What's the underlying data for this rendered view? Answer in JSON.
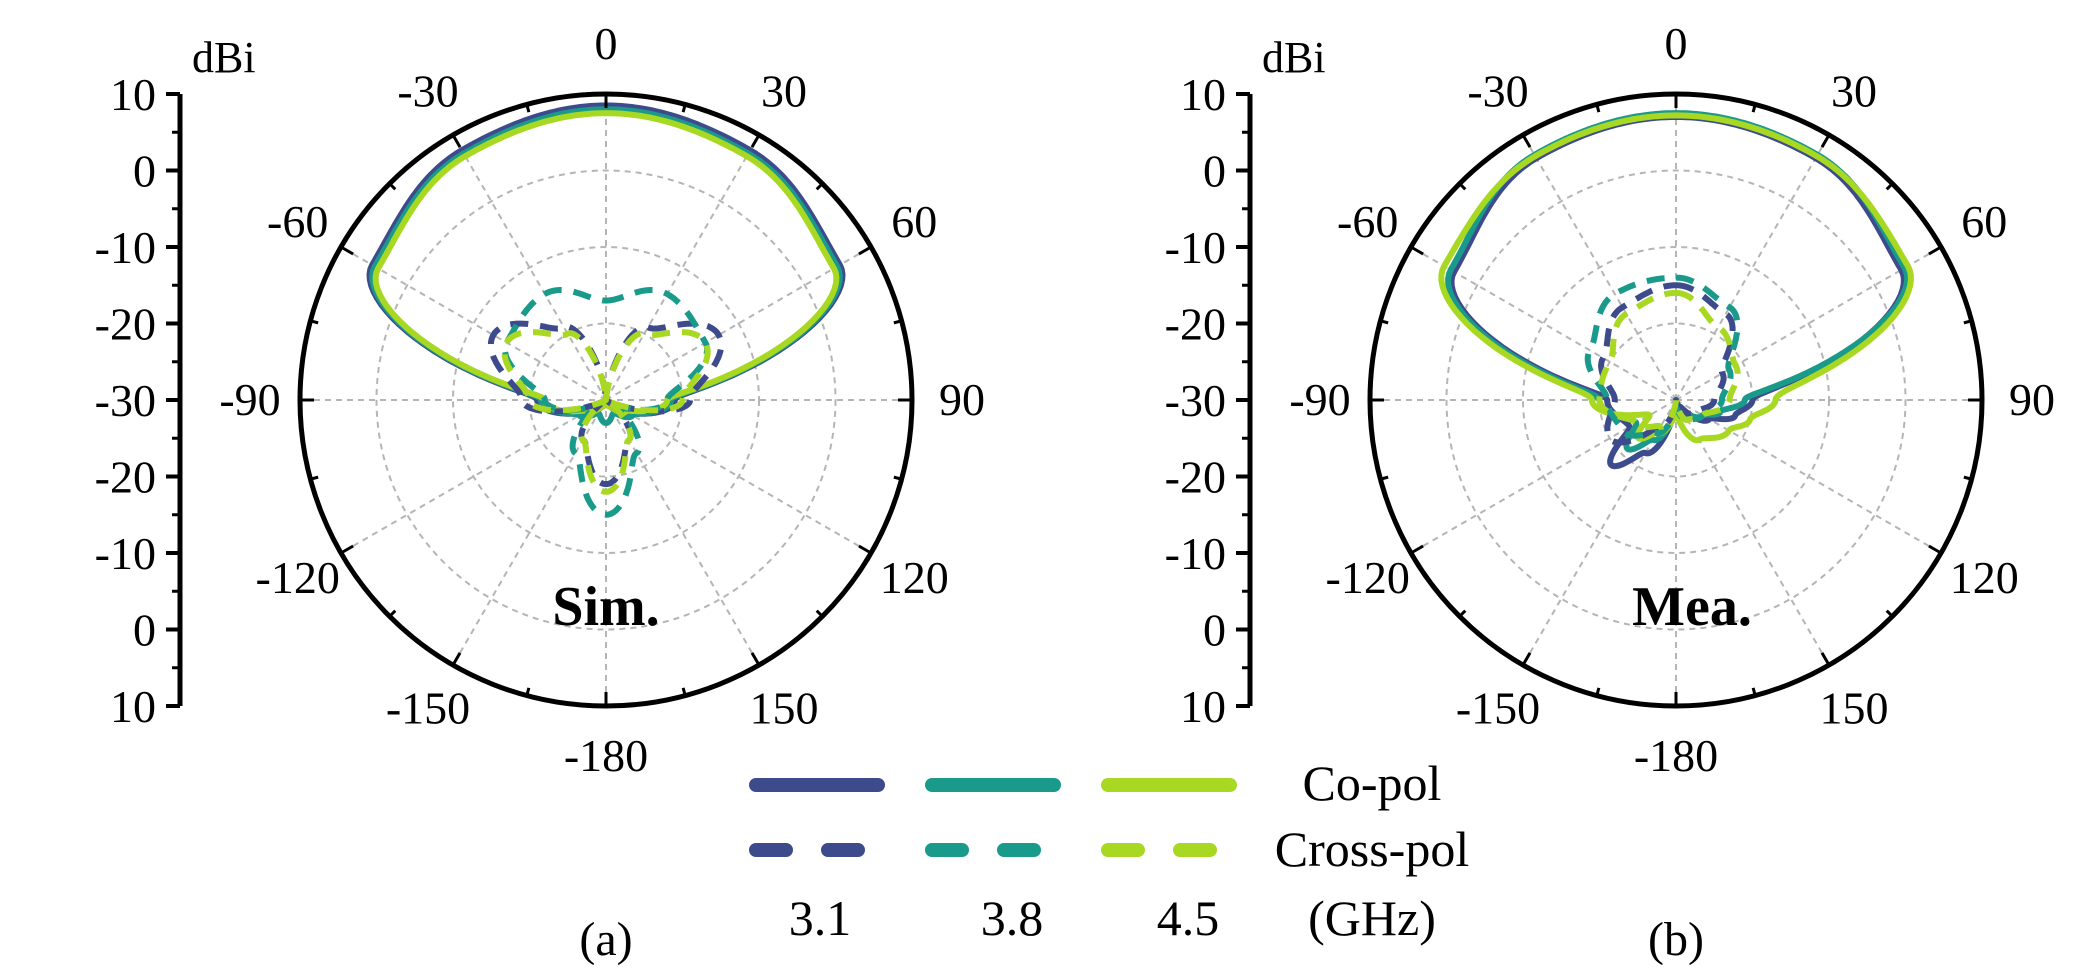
{
  "chart_data": [
    {
      "type": "polar",
      "panel_label": "(a)",
      "annotation": "Sim.",
      "radial_unit": "dBi",
      "radial_ticks": [
        "10",
        "0",
        "-10",
        "-20",
        "-30",
        "-20",
        "-10",
        "0",
        "10"
      ],
      "r_range": [
        -30,
        10
      ],
      "angle_labels": [
        "0",
        "30",
        "60",
        "90",
        "120",
        "150",
        "-180",
        "-150",
        "-120",
        "-90",
        "-60",
        "-30"
      ],
      "grid": true,
      "series": [
        {
          "name": "3.1",
          "pol": "co",
          "color": "#3d4a8c",
          "angles": [
            0,
            30,
            60,
            90,
            120,
            150,
            180,
            -150,
            -120,
            -90,
            -60,
            -30
          ],
          "values": [
            8.5,
            7.7,
            5.3,
            -21,
            -26,
            -29,
            -30,
            -29,
            -26,
            -21,
            5.3,
            7.7
          ]
        },
        {
          "name": "3.8",
          "pol": "co",
          "color": "#1a9a8a",
          "angles": [
            0,
            30,
            60,
            90,
            120,
            150,
            180,
            -150,
            -120,
            -90,
            -60,
            -30
          ],
          "values": [
            8.0,
            7.2,
            4.9,
            -21.5,
            -26,
            -28,
            -27,
            -28,
            -26,
            -21.5,
            4.9,
            7.2
          ]
        },
        {
          "name": "4.5",
          "pol": "co",
          "color": "#a8d822",
          "angles": [
            0,
            30,
            60,
            90,
            120,
            150,
            180,
            -150,
            -120,
            -90,
            -60,
            -30
          ],
          "values": [
            7.5,
            6.8,
            4.4,
            -22,
            -27,
            -29,
            -30,
            -29,
            -27,
            -22,
            4.4,
            6.8
          ]
        },
        {
          "name": "3.1",
          "pol": "cross",
          "color": "#3d4a8c",
          "angles": [
            0,
            30,
            60,
            90,
            120,
            150,
            180,
            -150,
            -120,
            -90,
            -60,
            -30
          ],
          "values": [
            -30,
            -19,
            -13,
            -19,
            -30,
            -24,
            -19,
            -24,
            -30,
            -19,
            -13,
            -19
          ]
        },
        {
          "name": "3.8",
          "pol": "cross",
          "color": "#1a9a8a",
          "angles": [
            0,
            30,
            60,
            90,
            120,
            150,
            180,
            -150,
            -120,
            -90,
            -60,
            -30
          ],
          "values": [
            -17,
            -14,
            -15,
            -22,
            -28,
            -22,
            -15,
            -22,
            -28,
            -22,
            -15,
            -14
          ]
        },
        {
          "name": "4.5",
          "pol": "cross",
          "color": "#a8d822",
          "angles": [
            0,
            30,
            60,
            90,
            120,
            150,
            180,
            -150,
            -120,
            -90,
            -60,
            -30
          ],
          "values": [
            -30,
            -20,
            -15,
            -20,
            -30,
            -24,
            -18,
            -24,
            -30,
            -20,
            -15,
            -20
          ]
        }
      ]
    },
    {
      "type": "polar",
      "panel_label": "(b)",
      "annotation": "Mea.",
      "radial_unit": "dBi",
      "radial_ticks": [
        "10",
        "0",
        "-10",
        "-20",
        "-30",
        "-20",
        "-10",
        "0",
        "10"
      ],
      "r_range": [
        -30,
        10
      ],
      "angle_labels": [
        "0",
        "30",
        "60",
        "90",
        "120",
        "150",
        "-180",
        "-150",
        "-120",
        "-90",
        "-60",
        "-30"
      ],
      "grid": true,
      "series": [
        {
          "name": "3.1",
          "pol": "co",
          "color": "#3d4a8c",
          "angles": [
            0,
            30,
            60,
            90,
            105,
            120,
            150,
            180,
            -150,
            -135,
            -120,
            -90,
            -60,
            -30
          ],
          "values": [
            7.0,
            6.5,
            4.0,
            -20,
            -22,
            -25,
            -29,
            -30,
            -22,
            -18,
            -23,
            -21,
            3.5,
            6.5
          ]
        },
        {
          "name": "3.8",
          "pol": "co",
          "color": "#1a9a8a",
          "angles": [
            0,
            30,
            60,
            90,
            105,
            120,
            150,
            180,
            -150,
            -135,
            -120,
            -90,
            -60,
            -30
          ],
          "values": [
            7.5,
            7.0,
            4.5,
            -21,
            -24,
            -26,
            -28,
            -29,
            -24,
            -21,
            -24,
            -20,
            4.0,
            7.0
          ]
        },
        {
          "name": "4.5",
          "pol": "co",
          "color": "#a8d822",
          "angles": [
            0,
            30,
            60,
            90,
            105,
            120,
            150,
            180,
            -150,
            -135,
            -120,
            -90,
            -60,
            -30
          ],
          "values": [
            7.2,
            6.8,
            5.0,
            -17,
            -20,
            -22,
            -24,
            -28,
            -25,
            -23,
            -26,
            -19,
            5.0,
            6.8
          ]
        },
        {
          "name": "3.1",
          "pol": "cross",
          "color": "#3d4a8c",
          "angles": [
            0,
            30,
            60,
            90,
            120,
            150,
            180,
            -150,
            -120,
            -90,
            -60,
            -30
          ],
          "values": [
            -15,
            -17,
            -23,
            -25,
            -27,
            -28,
            -30,
            -26,
            -20,
            -22,
            -19,
            -16
          ]
        },
        {
          "name": "3.8",
          "pol": "cross",
          "color": "#1a9a8a",
          "angles": [
            0,
            30,
            60,
            90,
            120,
            150,
            180,
            -150,
            -120,
            -90,
            -60,
            -30
          ],
          "values": [
            -14,
            -16,
            -22,
            -24,
            -26,
            -27,
            -29,
            -25,
            -22,
            -21,
            -17,
            -14
          ]
        },
        {
          "name": "4.5",
          "pol": "cross",
          "color": "#a8d822",
          "angles": [
            0,
            30,
            60,
            90,
            120,
            150,
            180,
            -150,
            -120,
            -90,
            -60,
            -30
          ],
          "values": [
            -16,
            -19,
            -21,
            -23,
            -26,
            -27,
            -30,
            -26,
            -24,
            -20,
            -20,
            -17
          ]
        }
      ]
    }
  ],
  "legend": {
    "frequencies": [
      "3.1",
      "3.8",
      "4.5"
    ],
    "colors": [
      "#3d4a8c",
      "#1a9a8a",
      "#a8d822"
    ],
    "co_label": "Co-pol",
    "cross_label": "Cross-pol",
    "unit_label": "(GHz)"
  }
}
